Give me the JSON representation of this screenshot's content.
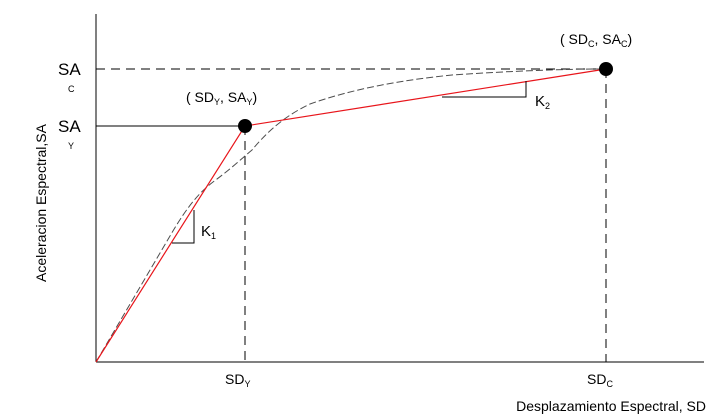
{
  "colors": {
    "axis": "#000000",
    "bilinear": "#e8151b",
    "capacity_curve": "#4d4d4d",
    "guide": "#000000",
    "point": "#000000"
  },
  "labels": {
    "y_axis": "Aceleracion Espectral,SA",
    "x_axis": "Desplazamiento Espectral, SD",
    "sa_c_main": "SA",
    "sa_c_sub": "C",
    "sa_y_main": "SA",
    "sa_y_sub": "Y",
    "sd_y_main": "SD",
    "sd_y_sub": "Y",
    "sd_c_main": "SD",
    "sd_c_sub": "C",
    "point_y_open": "( SD",
    "point_y_sub1": "Y",
    "point_y_mid": ", SA",
    "point_y_sub2": "Y",
    "point_y_close": ")",
    "point_c_open": "( SD",
    "point_c_sub1": "C",
    "point_c_mid": ", SA",
    "point_c_sub2": "C",
    "point_c_close": ")",
    "k1_main": "K",
    "k1_sub": "1",
    "k2_main": "K",
    "k2_sub": "2"
  }
}
